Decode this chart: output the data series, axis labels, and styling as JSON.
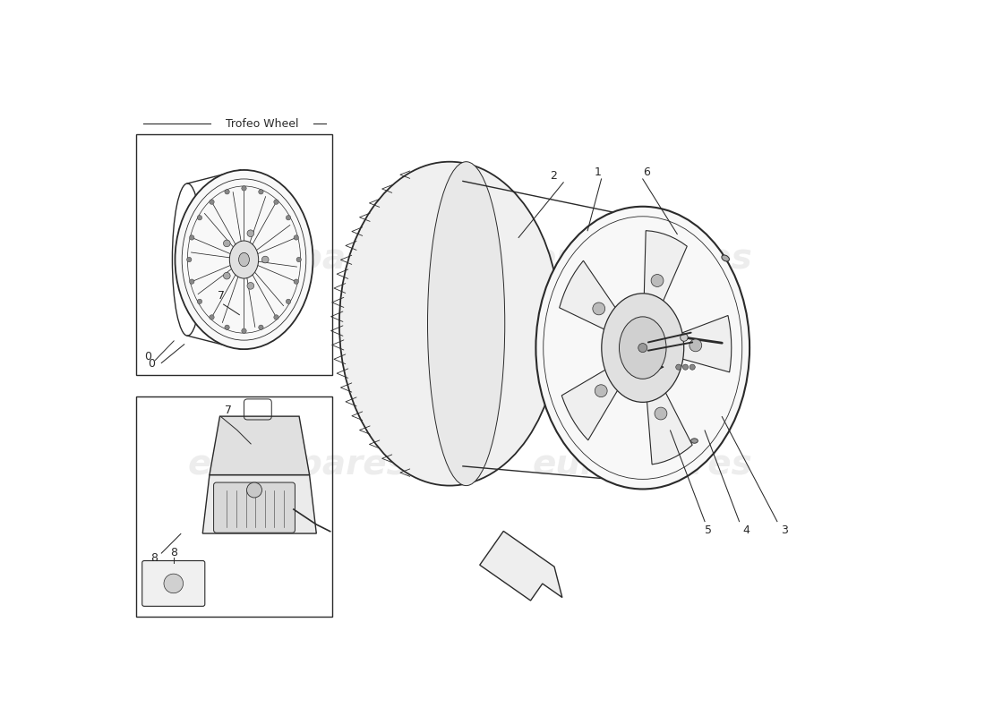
{
  "bg_color": "#ffffff",
  "line_color": "#2a2a2a",
  "watermark_text": "eurospares",
  "watermark_color": "#cccccc",
  "box1_label": "Trofeo Wheel",
  "part_numbers": [
    "0",
    "1",
    "2",
    "3",
    "4",
    "5",
    "6",
    "7",
    "8"
  ],
  "figsize": [
    11.0,
    8.0
  ],
  "dpi": 100
}
